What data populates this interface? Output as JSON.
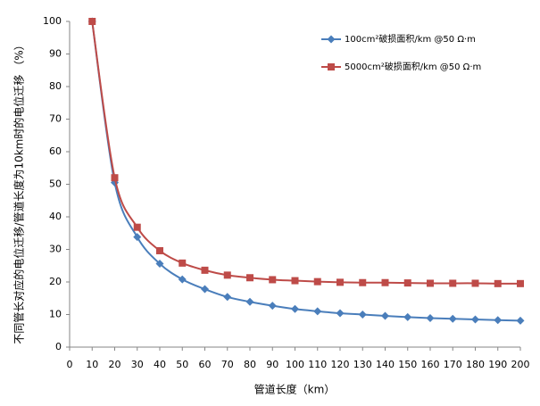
{
  "chart_data": {
    "type": "line",
    "x_label": "管道长度（km）",
    "y_label": "不同管长对应的电位迁移/管道长度为10km时的电位迁移 （%）",
    "x": [
      10,
      20,
      30,
      40,
      50,
      60,
      70,
      80,
      90,
      100,
      110,
      120,
      130,
      140,
      150,
      160,
      170,
      180,
      190,
      200
    ],
    "series": [
      {
        "name": "100cm²破损面积/km @50 Ω·m",
        "color": "#4a7ebb",
        "marker": "diamond",
        "values": [
          100,
          50.5,
          33.8,
          25.6,
          20.8,
          17.8,
          15.4,
          13.9,
          12.7,
          11.7,
          11.0,
          10.4,
          10.0,
          9.6,
          9.2,
          8.9,
          8.7,
          8.5,
          8.3,
          8.1
        ]
      },
      {
        "name": "5000cm²破损面积/km @50 Ω·m",
        "color": "#be4b48",
        "marker": "square",
        "values": [
          100,
          52,
          36.8,
          29.6,
          25.8,
          23.6,
          22.1,
          21.3,
          20.7,
          20.4,
          20.1,
          19.9,
          19.8,
          19.8,
          19.7,
          19.6,
          19.6,
          19.6,
          19.5,
          19.5
        ]
      }
    ],
    "xlim": [
      0,
      200
    ],
    "xticks": [
      0,
      10,
      20,
      30,
      40,
      50,
      60,
      70,
      80,
      90,
      100,
      110,
      120,
      130,
      140,
      150,
      160,
      170,
      180,
      190,
      200
    ],
    "ylim": [
      0,
      100
    ],
    "yticks": [
      0,
      10,
      20,
      30,
      40,
      50,
      60,
      70,
      80,
      90,
      100
    ],
    "legend": "upper right",
    "smooth": true
  }
}
